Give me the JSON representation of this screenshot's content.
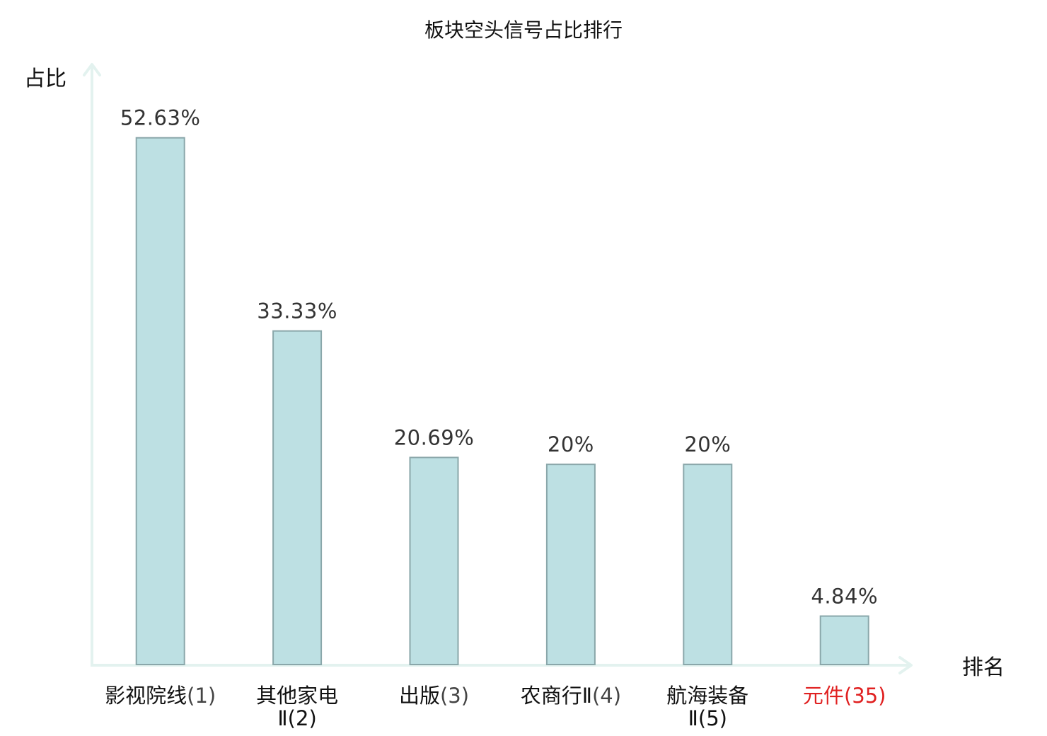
{
  "chart_data": {
    "type": "bar",
    "title": "板块空头信号占比排行",
    "ylabel": "占比",
    "xlabel": "排名",
    "ylim": [
      0,
      56.5
    ],
    "grid": false,
    "bar_color": "#bde0e3",
    "bar_border_color": "#8aa7aa",
    "axis_color": "#e3f2ef",
    "highlight_color": "#e02020",
    "categories": [
      {
        "name": "影视院线",
        "name_line2": "",
        "rank": "(1)",
        "highlight": false
      },
      {
        "name": "其他家电",
        "name_line2": "Ⅱ(2)",
        "rank": "",
        "highlight": false
      },
      {
        "name": "出版",
        "name_line2": "",
        "rank": "(3)",
        "highlight": false
      },
      {
        "name": "农商行Ⅱ",
        "name_line2": "",
        "rank": "(4)",
        "highlight": false
      },
      {
        "name": "航海装备",
        "name_line2": "Ⅱ(5)",
        "rank": "",
        "highlight": false
      },
      {
        "name": "元件",
        "name_line2": "",
        "rank": "(35)",
        "highlight": true
      }
    ],
    "values": [
      52.63,
      33.33,
      20.69,
      20,
      20,
      4.84
    ],
    "value_labels": [
      "52.63%",
      "33.33%",
      "20.69%",
      "20%",
      "20%",
      "4.84%"
    ]
  }
}
